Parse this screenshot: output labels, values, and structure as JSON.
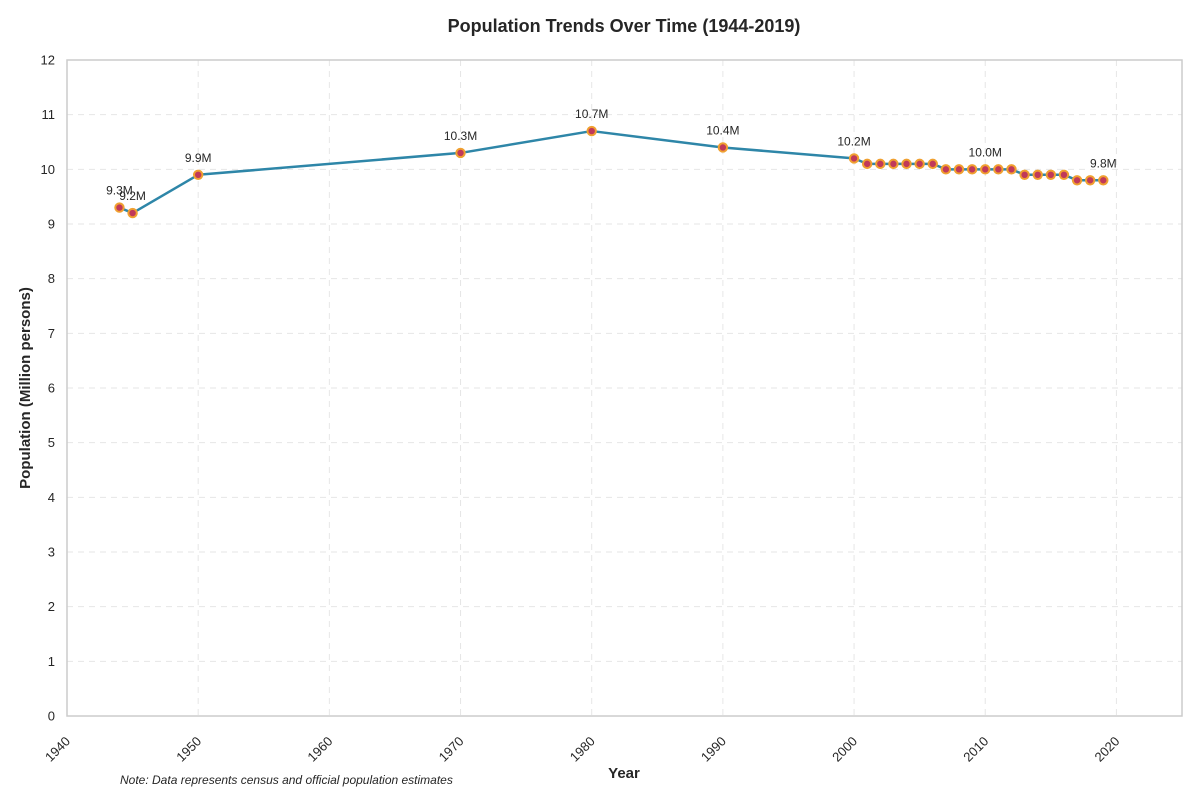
{
  "chart_data": {
    "type": "line",
    "title": "Population Trends Over Time (1944-2019)",
    "xlabel": "Year",
    "ylabel": "Population (Million persons)",
    "note": "Note: Data represents census and official population estimates",
    "xlim": [
      1940,
      2025
    ],
    "ylim": [
      0,
      12
    ],
    "xticks": [
      1940,
      1950,
      1960,
      1970,
      1980,
      1990,
      2000,
      2010,
      2020
    ],
    "yticks": [
      0,
      1,
      2,
      3,
      4,
      5,
      6,
      7,
      8,
      9,
      10,
      11,
      12
    ],
    "grid": true,
    "series": [
      {
        "x": [
          1944,
          1945,
          1950,
          1970,
          1980,
          1990,
          2000,
          2001,
          2002,
          2003,
          2004,
          2005,
          2006,
          2007,
          2008,
          2009,
          2010,
          2011,
          2012,
          2013,
          2014,
          2015,
          2016,
          2017,
          2018,
          2019
        ],
        "y": [
          9.3,
          9.2,
          9.9,
          10.3,
          10.7,
          10.4,
          10.2,
          10.1,
          10.1,
          10.1,
          10.1,
          10.1,
          10.1,
          10.0,
          10.0,
          10.0,
          10.0,
          10.0,
          10.0,
          9.9,
          9.9,
          9.9,
          9.9,
          9.8,
          9.8,
          9.8
        ]
      }
    ],
    "annotations": [
      {
        "x": 1944,
        "y": 9.3,
        "text": "9.3M"
      },
      {
        "x": 1945,
        "y": 9.2,
        "text": "9.2M"
      },
      {
        "x": 1950,
        "y": 9.9,
        "text": "9.9M"
      },
      {
        "x": 1970,
        "y": 10.3,
        "text": "10.3M"
      },
      {
        "x": 1980,
        "y": 10.7,
        "text": "10.7M"
      },
      {
        "x": 1990,
        "y": 10.4,
        "text": "10.4M"
      },
      {
        "x": 2000,
        "y": 10.2,
        "text": "10.2M"
      },
      {
        "x": 2010,
        "y": 10.0,
        "text": "10.0M"
      },
      {
        "x": 2019,
        "y": 9.8,
        "text": "9.8M"
      }
    ],
    "colors": {
      "line": "#2e86a8",
      "marker_fill": "#c0395a",
      "marker_edge": "#f0a030",
      "grid": "#e6e6e6",
      "frame": "#cccccc"
    }
  }
}
